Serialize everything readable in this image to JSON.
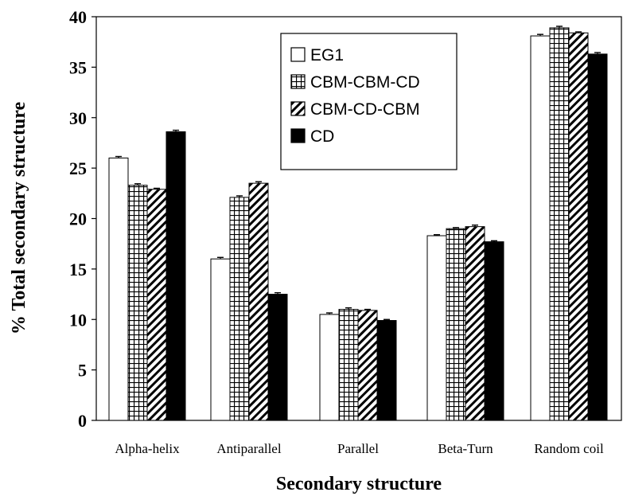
{
  "chart_data": {
    "type": "bar",
    "title": "",
    "xlabel": "Secondary structure",
    "ylabel": "% Total secondary structure",
    "ylim": [
      0,
      40
    ],
    "yticks": [
      0,
      5,
      10,
      15,
      20,
      25,
      30,
      35,
      40
    ],
    "grid": false,
    "legend_position": "top-right",
    "categories": [
      "Alpha-helix",
      "Antiparallel",
      "Parallel",
      "Beta-Turn",
      "Random coil"
    ],
    "series": [
      {
        "name": "EG1",
        "pattern": "white",
        "values": [
          26.0,
          16.0,
          10.5,
          18.3,
          38.1
        ],
        "errors": [
          0.15,
          0.15,
          0.15,
          0.1,
          0.15
        ]
      },
      {
        "name": "CBM-CBM-CD",
        "pattern": "grid",
        "values": [
          23.3,
          22.1,
          11.0,
          19.0,
          38.9
        ],
        "errors": [
          0.15,
          0.15,
          0.15,
          0.1,
          0.15
        ]
      },
      {
        "name": "CBM-CD-CBM",
        "pattern": "diagonal",
        "values": [
          22.9,
          23.5,
          10.9,
          19.2,
          38.4
        ],
        "errors": [
          0.1,
          0.15,
          0.1,
          0.15,
          0.1
        ]
      },
      {
        "name": "CD",
        "pattern": "black",
        "values": [
          28.6,
          12.5,
          9.9,
          17.7,
          36.3
        ],
        "errors": [
          0.15,
          0.15,
          0.1,
          0.1,
          0.15
        ]
      }
    ]
  }
}
